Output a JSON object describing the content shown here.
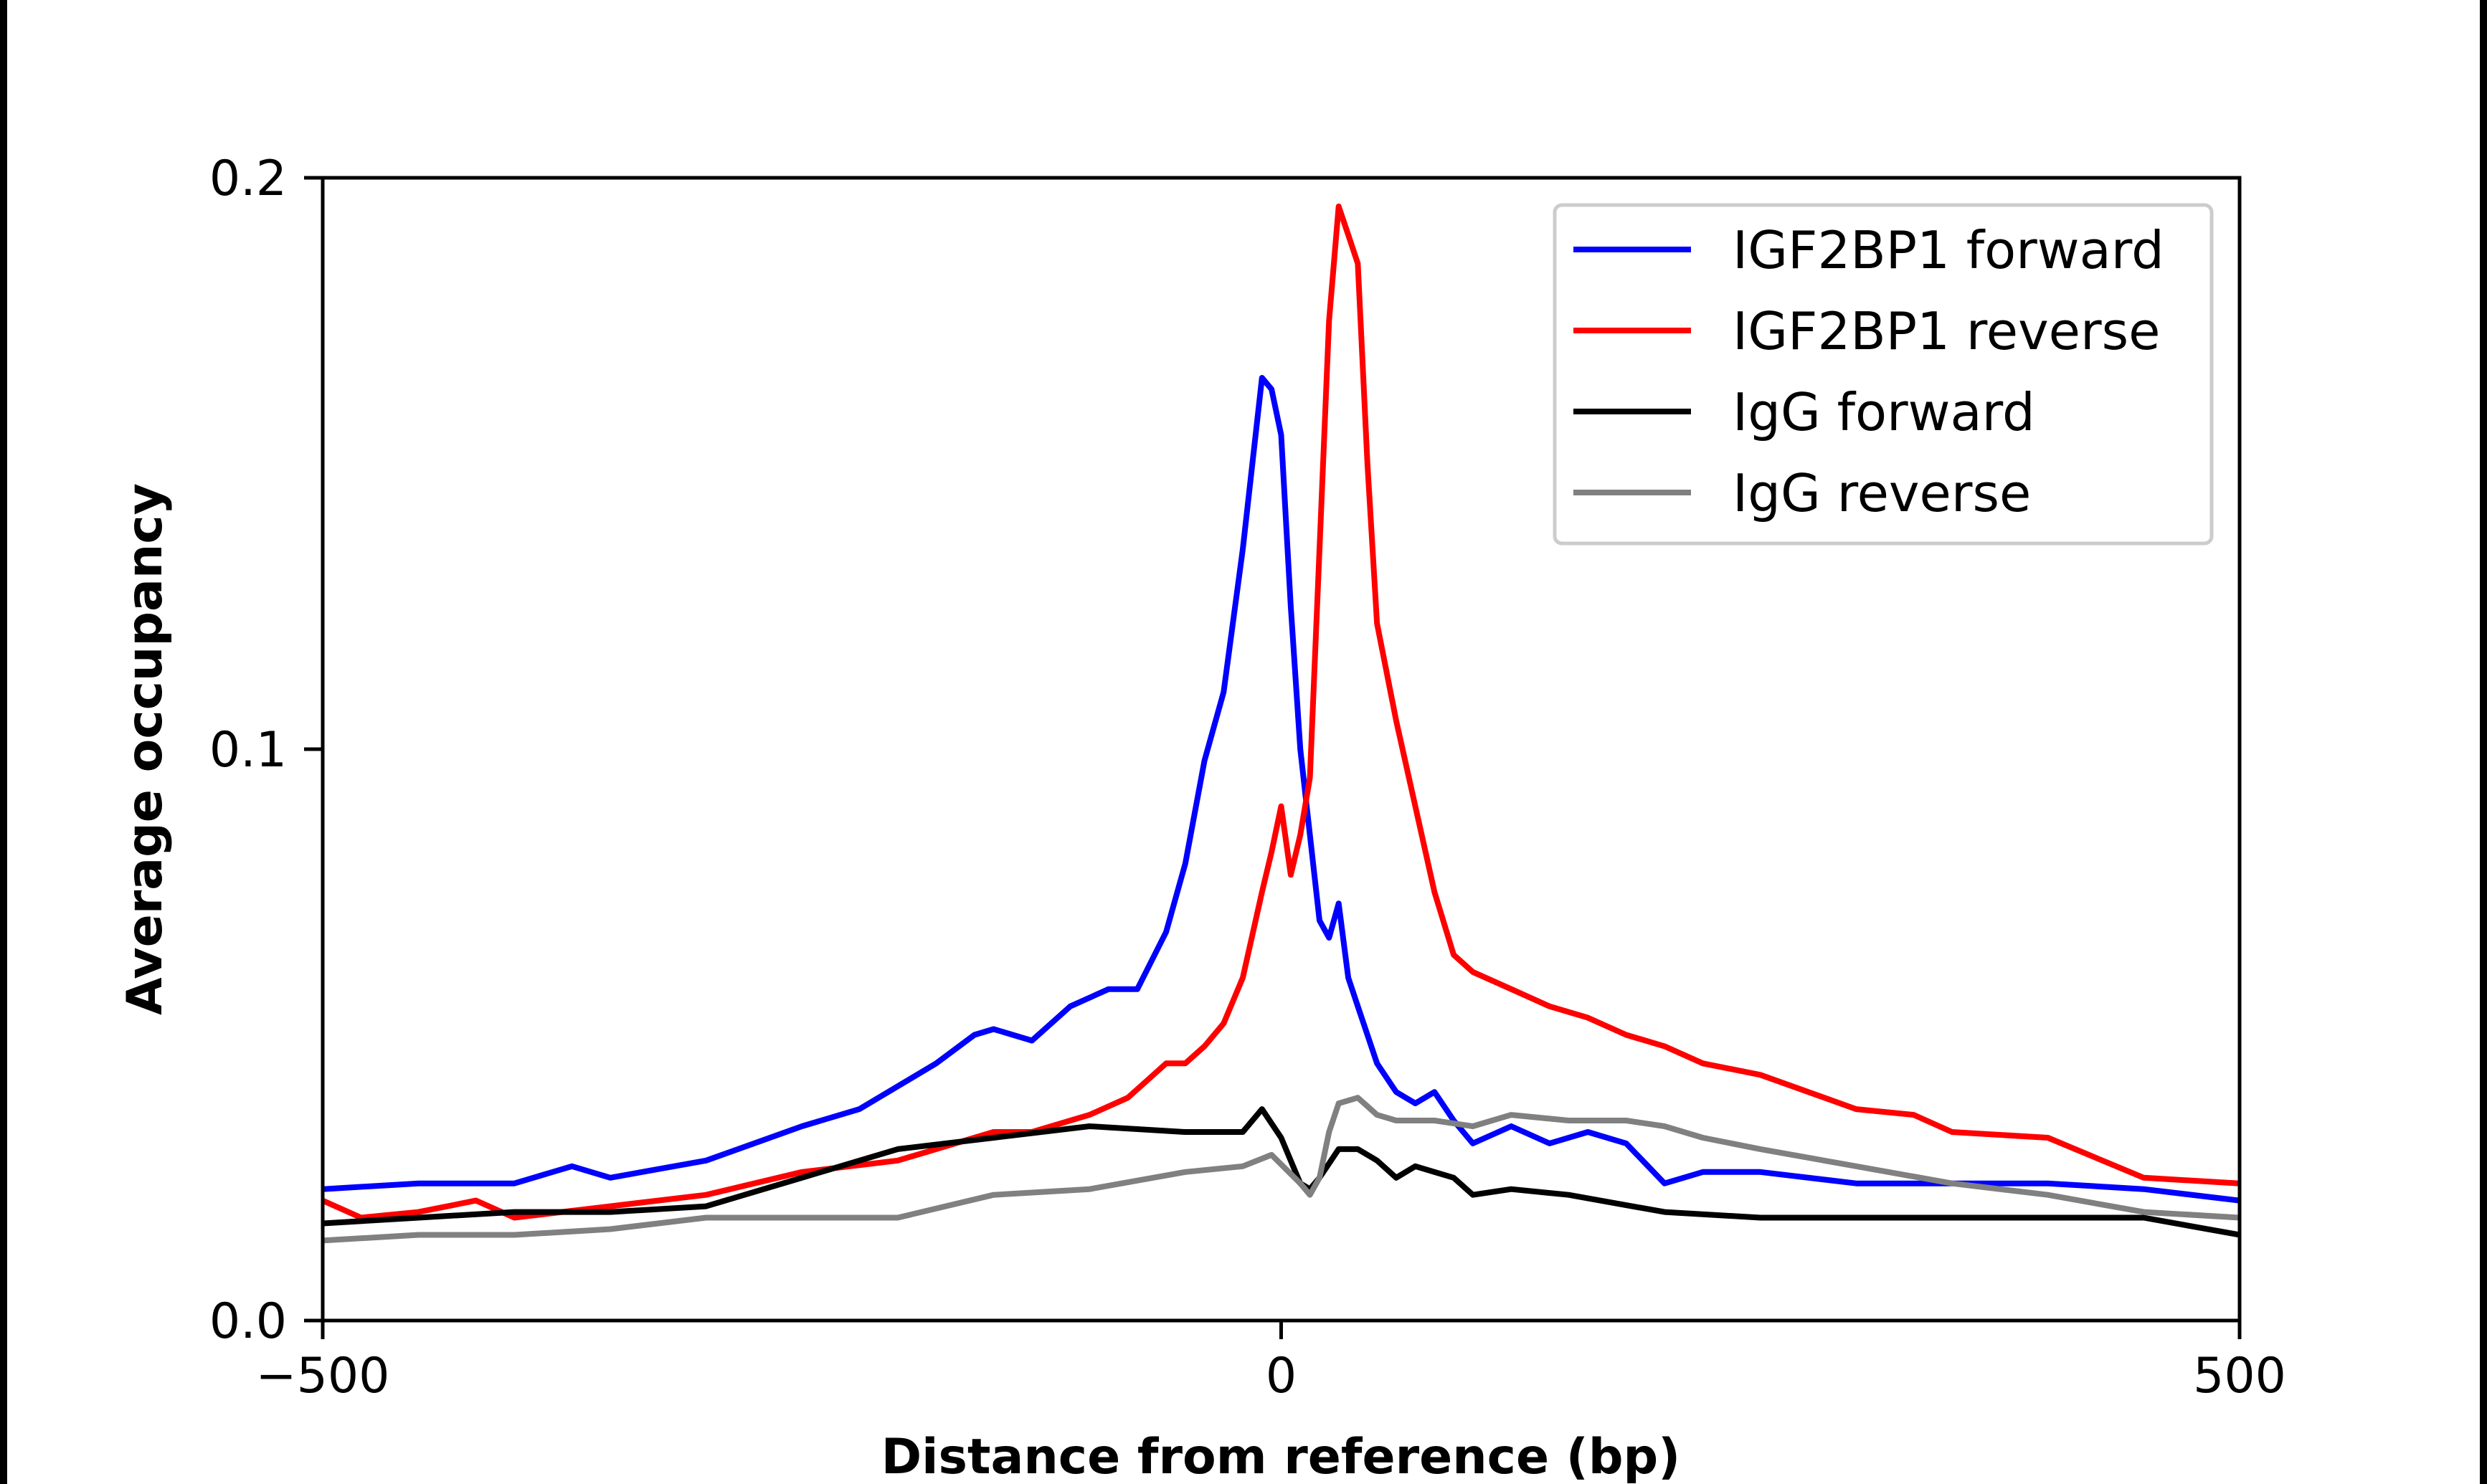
{
  "chart_data": {
    "type": "line",
    "title": "",
    "xlabel": "Distance from reference (bp)",
    "ylabel": "Average occupancy",
    "xlim": [
      -500,
      500
    ],
    "ylim": [
      0.0,
      0.2
    ],
    "xticks": [
      -500,
      0,
      500
    ],
    "xtick_labels": [
      "−500",
      "0",
      "500"
    ],
    "yticks": [
      0.0,
      0.1,
      0.2
    ],
    "ytick_labels": [
      "0.0",
      "0.1",
      "0.2"
    ],
    "grid": false,
    "legend_position": "top-right",
    "series": [
      {
        "name": "IGF2BP1 forward",
        "color": "#0000ff",
        "x": [
          -500,
          -450,
          -400,
          -370,
          -350,
          -300,
          -250,
          -220,
          -180,
          -160,
          -150,
          -130,
          -110,
          -90,
          -75,
          -60,
          -50,
          -40,
          -30,
          -20,
          -15,
          -10,
          -5,
          0,
          5,
          10,
          15,
          20,
          25,
          30,
          35,
          40,
          50,
          60,
          70,
          80,
          90,
          100,
          120,
          140,
          160,
          180,
          200,
          220,
          250,
          300,
          350,
          400,
          450,
          500
        ],
        "y": [
          0.023,
          0.024,
          0.024,
          0.027,
          0.025,
          0.028,
          0.034,
          0.037,
          0.045,
          0.05,
          0.051,
          0.049,
          0.055,
          0.058,
          0.058,
          0.068,
          0.08,
          0.098,
          0.11,
          0.135,
          0.15,
          0.165,
          0.163,
          0.155,
          0.125,
          0.1,
          0.085,
          0.07,
          0.067,
          0.073,
          0.06,
          0.055,
          0.045,
          0.04,
          0.038,
          0.04,
          0.035,
          0.031,
          0.034,
          0.031,
          0.033,
          0.031,
          0.024,
          0.026,
          0.026,
          0.024,
          0.024,
          0.024,
          0.023,
          0.021
        ]
      },
      {
        "name": "IGF2BP1 reverse",
        "color": "#ff0000",
        "x": [
          -500,
          -480,
          -450,
          -420,
          -400,
          -350,
          -300,
          -250,
          -200,
          -150,
          -130,
          -100,
          -80,
          -70,
          -60,
          -50,
          -40,
          -30,
          -20,
          -10,
          -5,
          0,
          5,
          10,
          15,
          20,
          25,
          30,
          35,
          40,
          45,
          50,
          60,
          70,
          80,
          90,
          100,
          120,
          140,
          160,
          180,
          200,
          220,
          250,
          300,
          330,
          350,
          400,
          450,
          500
        ],
        "y": [
          0.021,
          0.018,
          0.019,
          0.021,
          0.018,
          0.02,
          0.022,
          0.026,
          0.028,
          0.033,
          0.033,
          0.036,
          0.039,
          0.042,
          0.045,
          0.045,
          0.048,
          0.052,
          0.06,
          0.075,
          0.082,
          0.09,
          0.078,
          0.085,
          0.095,
          0.135,
          0.175,
          0.195,
          0.19,
          0.185,
          0.15,
          0.122,
          0.105,
          0.09,
          0.075,
          0.064,
          0.061,
          0.058,
          0.055,
          0.053,
          0.05,
          0.048,
          0.045,
          0.043,
          0.037,
          0.036,
          0.033,
          0.032,
          0.025,
          0.024
        ]
      },
      {
        "name": "IgG forward",
        "color": "#000000",
        "x": [
          -500,
          -450,
          -400,
          -350,
          -300,
          -250,
          -200,
          -150,
          -100,
          -50,
          -20,
          -10,
          0,
          10,
          15,
          20,
          30,
          40,
          50,
          60,
          70,
          80,
          90,
          100,
          120,
          150,
          200,
          250,
          300,
          350,
          400,
          450,
          500
        ],
        "y": [
          0.017,
          0.018,
          0.019,
          0.019,
          0.02,
          0.025,
          0.03,
          0.032,
          0.034,
          0.033,
          0.033,
          0.037,
          0.032,
          0.024,
          0.023,
          0.025,
          0.03,
          0.03,
          0.028,
          0.025,
          0.027,
          0.026,
          0.025,
          0.022,
          0.023,
          0.022,
          0.019,
          0.018,
          0.018,
          0.018,
          0.018,
          0.018,
          0.015
        ]
      },
      {
        "name": "IgG reverse",
        "color": "#808080",
        "x": [
          -500,
          -450,
          -400,
          -350,
          -300,
          -250,
          -200,
          -150,
          -100,
          -50,
          -20,
          -5,
          10,
          15,
          20,
          25,
          30,
          40,
          50,
          60,
          80,
          100,
          120,
          150,
          180,
          200,
          220,
          250,
          300,
          350,
          400,
          450,
          500
        ],
        "y": [
          0.014,
          0.015,
          0.015,
          0.016,
          0.018,
          0.018,
          0.018,
          0.022,
          0.023,
          0.026,
          0.027,
          0.029,
          0.024,
          0.022,
          0.025,
          0.033,
          0.038,
          0.039,
          0.036,
          0.035,
          0.035,
          0.034,
          0.036,
          0.035,
          0.035,
          0.034,
          0.032,
          0.03,
          0.027,
          0.024,
          0.022,
          0.019,
          0.018
        ]
      }
    ]
  }
}
